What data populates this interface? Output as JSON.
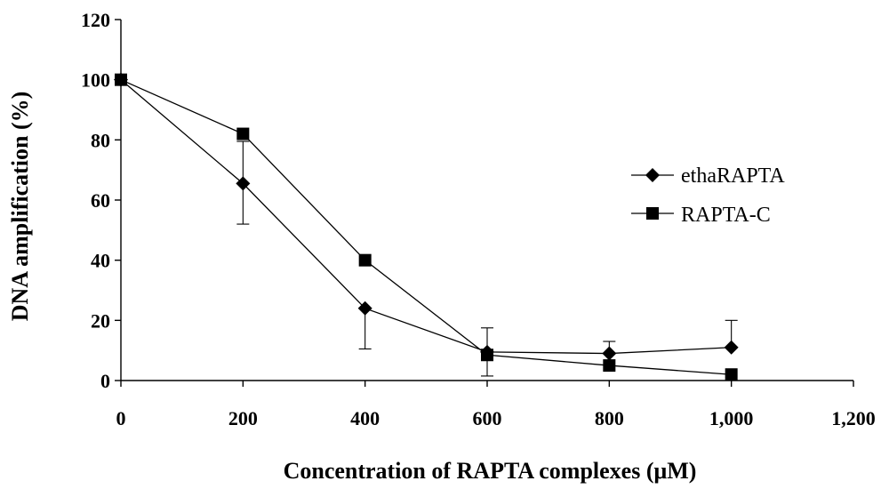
{
  "chart_data": {
    "type": "line",
    "title": "",
    "xlabel": "Concentration of RAPTA complexes (μM)",
    "ylabel": "DNA amplification (%)",
    "xlim": [
      0,
      1200
    ],
    "ylim": [
      0,
      120
    ],
    "x_ticks": [
      0,
      200,
      400,
      600,
      800,
      1000,
      1200
    ],
    "x_tick_labels": [
      "0",
      "200",
      "400",
      "600",
      "800",
      "1,000",
      "1,200"
    ],
    "y_ticks": [
      0,
      20,
      40,
      60,
      80,
      100,
      120
    ],
    "y_tick_labels": [
      "0",
      "20",
      "40",
      "60",
      "80",
      "100",
      "120"
    ],
    "grid": false,
    "legend_position": "right",
    "series": [
      {
        "name": "ethaRAPTA",
        "marker": "diamond",
        "x": [
          0,
          200,
          400,
          600,
          800,
          1000
        ],
        "values": [
          100,
          65.5,
          24,
          9.5,
          9,
          11
        ],
        "error_upper": [
          0,
          14,
          0,
          8,
          4,
          9
        ],
        "error_lower": [
          0,
          13.5,
          13.5,
          8,
          0,
          0
        ]
      },
      {
        "name": "RAPTA-C",
        "marker": "square",
        "x": [
          0,
          200,
          400,
          600,
          800,
          1000
        ],
        "values": [
          100,
          82,
          40,
          8.5,
          5,
          2
        ],
        "error_upper": [
          0,
          0,
          0,
          0,
          0,
          0
        ],
        "error_lower": [
          0,
          0,
          0,
          0,
          0,
          0
        ]
      }
    ]
  }
}
